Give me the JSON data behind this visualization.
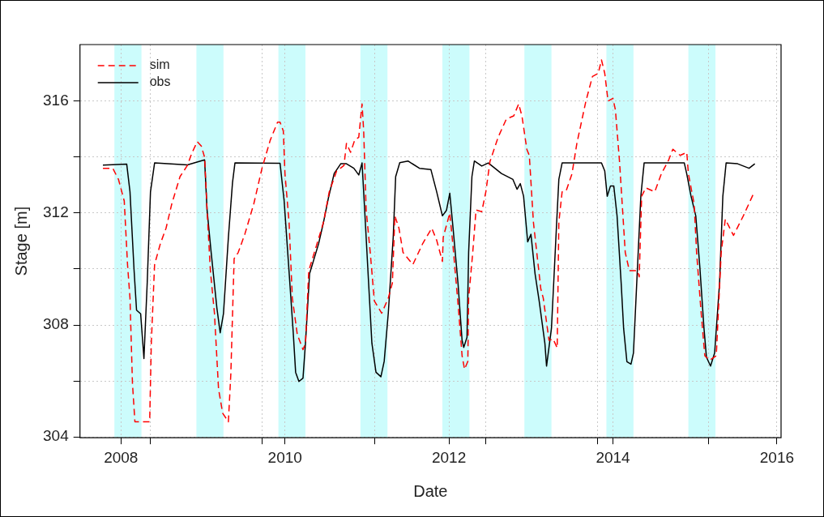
{
  "chart_data": {
    "type": "line",
    "xlabel": "Date",
    "ylabel": "Stage [m]",
    "xlim": [
      2007.5,
      2016.05
    ],
    "ylim": [
      303.97,
      318.02
    ],
    "xticks": [
      2008,
      {
        "value": 2008.36,
        "label": null
      },
      {
        "value": 2009.72,
        "label": null
      },
      2010,
      {
        "value": 2011.09,
        "label": null
      },
      2012,
      {
        "value": 2012.45,
        "label": null
      },
      {
        "value": 2013.81,
        "label": null
      },
      2014,
      {
        "value": 2015.17,
        "label": null
      },
      2016
    ],
    "yticks": [
      304,
      {
        "value": 306,
        "label": null
      },
      308,
      {
        "value": 310,
        "label": null
      },
      312,
      {
        "value": 314,
        "label": null
      },
      316
    ],
    "grid": true,
    "legend": "top left",
    "marker": "none",
    "bands": [
      {
        "axis": "x",
        "from": 2007.92,
        "to": 2008.25,
        "color": "#ccfcfc"
      },
      {
        "axis": "x",
        "from": 2008.92,
        "to": 2009.25,
        "color": "#ccfcfc"
      },
      {
        "axis": "x",
        "from": 2009.92,
        "to": 2010.25,
        "color": "#ccfcfc"
      },
      {
        "axis": "x",
        "from": 2010.92,
        "to": 2011.25,
        "color": "#ccfcfc"
      },
      {
        "axis": "x",
        "from": 2011.92,
        "to": 2012.25,
        "color": "#ccfcfc"
      },
      {
        "axis": "x",
        "from": 2012.92,
        "to": 2013.25,
        "color": "#ccfcfc"
      },
      {
        "axis": "x",
        "from": 2013.92,
        "to": 2014.25,
        "color": "#ccfcfc"
      },
      {
        "axis": "x",
        "from": 2014.92,
        "to": 2015.25,
        "color": "#ccfcfc"
      }
    ],
    "series": [
      {
        "name": "sim",
        "color": "#ff0000",
        "line_style": "dashed",
        "x": [
          2007.78,
          2007.9,
          2007.97,
          2008.04,
          2008.08,
          2008.11,
          2008.14,
          2008.17,
          2008.35,
          2008.37,
          2008.41,
          2008.48,
          2008.55,
          2008.62,
          2008.72,
          2008.81,
          2008.86,
          2008.93,
          2008.98,
          2009.02,
          2009.05,
          2009.09,
          2009.14,
          2009.19,
          2009.24,
          2009.31,
          2009.34,
          2009.38,
          2009.43,
          2009.51,
          2009.62,
          2009.72,
          2009.82,
          2009.91,
          2009.94,
          2009.98,
          2010.0,
          2010.05,
          2010.09,
          2010.15,
          2010.22,
          2010.25,
          2010.29,
          2010.37,
          2010.47,
          2010.54,
          2010.63,
          2010.72,
          2010.75,
          2010.8,
          2010.85,
          2010.9,
          2010.94,
          2010.96,
          2010.99,
          2011.04,
          2011.09,
          2011.18,
          2011.26,
          2011.31,
          2011.34,
          2011.39,
          2011.44,
          2011.56,
          2011.68,
          2011.79,
          2011.85,
          2011.92,
          2011.93,
          2012.01,
          2012.05,
          2012.12,
          2012.16,
          2012.19,
          2012.23,
          2012.24,
          2012.29,
          2012.33,
          2012.4,
          2012.45,
          2012.5,
          2012.6,
          2012.7,
          2012.79,
          2012.85,
          2012.89,
          2012.95,
          2012.98,
          2013.03,
          2013.12,
          2013.15,
          2013.22,
          2013.27,
          2013.32,
          2013.34,
          2013.38,
          2013.43,
          2013.5,
          2013.56,
          2013.67,
          2013.75,
          2013.82,
          2013.86,
          2013.9,
          2013.94,
          2014.0,
          2014.03,
          2014.08,
          2014.15,
          2014.2,
          2014.3,
          2014.32,
          2014.35,
          2014.4,
          2014.51,
          2014.59,
          2014.68,
          2014.73,
          2014.82,
          2014.9,
          2014.92,
          2014.99,
          2015.02,
          2015.07,
          2015.12,
          2015.18,
          2015.26,
          2015.32,
          2015.37,
          2015.47,
          2015.59,
          2015.72
        ],
        "values": [
          313.6,
          313.6,
          313.2,
          312.43,
          310.16,
          308.96,
          305.92,
          304.54,
          304.54,
          307.34,
          310.16,
          310.9,
          311.46,
          312.33,
          313.3,
          313.7,
          314.11,
          314.55,
          314.39,
          313.99,
          312.11,
          309.95,
          308.42,
          305.71,
          304.85,
          304.54,
          306.26,
          310.37,
          310.59,
          311.24,
          312.33,
          313.6,
          314.6,
          315.25,
          315.25,
          314.93,
          313.4,
          311.67,
          308.96,
          307.66,
          307.12,
          307.34,
          309.94,
          310.7,
          311.67,
          312.76,
          313.5,
          313.7,
          314.49,
          314.17,
          314.6,
          314.71,
          315.9,
          314.93,
          312.11,
          310.59,
          308.86,
          308.42,
          308.96,
          309.5,
          311.9,
          311.46,
          310.59,
          310.16,
          310.91,
          311.46,
          311.03,
          310.27,
          311.13,
          312.0,
          310.8,
          308.42,
          306.9,
          306.42,
          306.7,
          308.96,
          310.59,
          312.11,
          312.05,
          312.76,
          313.84,
          314.71,
          315.36,
          315.47,
          315.9,
          315.47,
          314.27,
          314.06,
          311.67,
          309.29,
          308.96,
          307.45,
          307.5,
          307.18,
          311.67,
          312.76,
          312.8,
          313.4,
          314.49,
          316.0,
          316.88,
          316.99,
          317.47,
          316.99,
          316.0,
          316.1,
          315.68,
          313.84,
          310.59,
          309.94,
          309.94,
          309.72,
          312.6,
          312.9,
          312.76,
          313.4,
          313.9,
          314.28,
          314.06,
          314.17,
          313.4,
          312.33,
          310.59,
          308.64,
          306.9,
          306.74,
          306.9,
          310.59,
          311.78,
          311.2,
          311.9,
          312.73
        ]
      },
      {
        "name": "obs",
        "color": "#000000",
        "line_style": "solid",
        "x": [
          2007.78,
          2008.07,
          2008.11,
          2008.16,
          2008.19,
          2008.24,
          2008.28,
          2008.32,
          2008.36,
          2008.41,
          2008.81,
          2009.02,
          2009.05,
          2009.1,
          2009.17,
          2009.21,
          2009.25,
          2009.31,
          2009.36,
          2009.39,
          2009.94,
          2009.99,
          2010.05,
          2010.1,
          2010.13,
          2010.17,
          2010.22,
          2010.25,
          2010.3,
          2010.41,
          2010.47,
          2010.53,
          2010.6,
          2010.68,
          2010.75,
          2010.84,
          2010.9,
          2010.94,
          2010.97,
          2011.02,
          2011.06,
          2011.11,
          2011.17,
          2011.21,
          2011.26,
          2011.32,
          2011.35,
          2011.4,
          2011.5,
          2011.64,
          2011.78,
          2011.85,
          2011.92,
          2011.97,
          2012.01,
          2012.05,
          2012.11,
          2012.16,
          2012.18,
          2012.22,
          2012.24,
          2012.28,
          2012.31,
          2012.4,
          2012.48,
          2012.64,
          2012.78,
          2012.83,
          2012.87,
          2012.91,
          2012.96,
          2013.0,
          2013.05,
          2013.1,
          2013.17,
          2013.19,
          2013.25,
          2013.31,
          2013.34,
          2013.38,
          2013.63,
          2013.86,
          2013.9,
          2013.93,
          2013.97,
          2014.01,
          2014.05,
          2014.1,
          2014.13,
          2014.17,
          2014.22,
          2014.25,
          2014.29,
          2014.34,
          2014.38,
          2014.87,
          2014.9,
          2014.95,
          2015.01,
          2015.06,
          2015.11,
          2015.14,
          2015.19,
          2015.24,
          2015.3,
          2015.34,
          2015.38,
          2015.52,
          2015.66,
          2015.73
        ],
        "values": [
          313.71,
          313.75,
          312.76,
          309.95,
          308.53,
          308.4,
          306.8,
          309.5,
          312.76,
          313.79,
          313.72,
          313.9,
          312.11,
          310.59,
          308.6,
          307.72,
          308.4,
          311.13,
          313.08,
          313.79,
          313.78,
          312.43,
          309.9,
          307.77,
          306.31,
          305.98,
          306.1,
          307.34,
          309.83,
          310.9,
          311.67,
          312.54,
          313.41,
          313.76,
          313.76,
          313.6,
          313.36,
          313.79,
          312.22,
          309.5,
          307.35,
          306.31,
          306.15,
          306.7,
          308.42,
          311.13,
          313.3,
          313.8,
          313.86,
          313.6,
          313.55,
          312.76,
          311.9,
          312.1,
          312.71,
          311.46,
          309.5,
          307.45,
          307.2,
          307.56,
          310.59,
          313.3,
          313.86,
          313.68,
          313.79,
          313.41,
          313.2,
          312.85,
          313.05,
          312.6,
          310.97,
          311.24,
          309.83,
          308.86,
          307.34,
          306.53,
          307.88,
          311.46,
          313.2,
          313.79,
          313.79,
          313.79,
          313.5,
          312.6,
          312.97,
          312.97,
          311.9,
          309.5,
          307.88,
          306.69,
          306.6,
          307.0,
          309.5,
          312.6,
          313.79,
          313.79,
          313.4,
          312.63,
          311.9,
          310.05,
          307.88,
          306.85,
          306.53,
          307.0,
          309.5,
          312.6,
          313.79,
          313.76,
          313.6,
          313.76
        ]
      }
    ]
  }
}
